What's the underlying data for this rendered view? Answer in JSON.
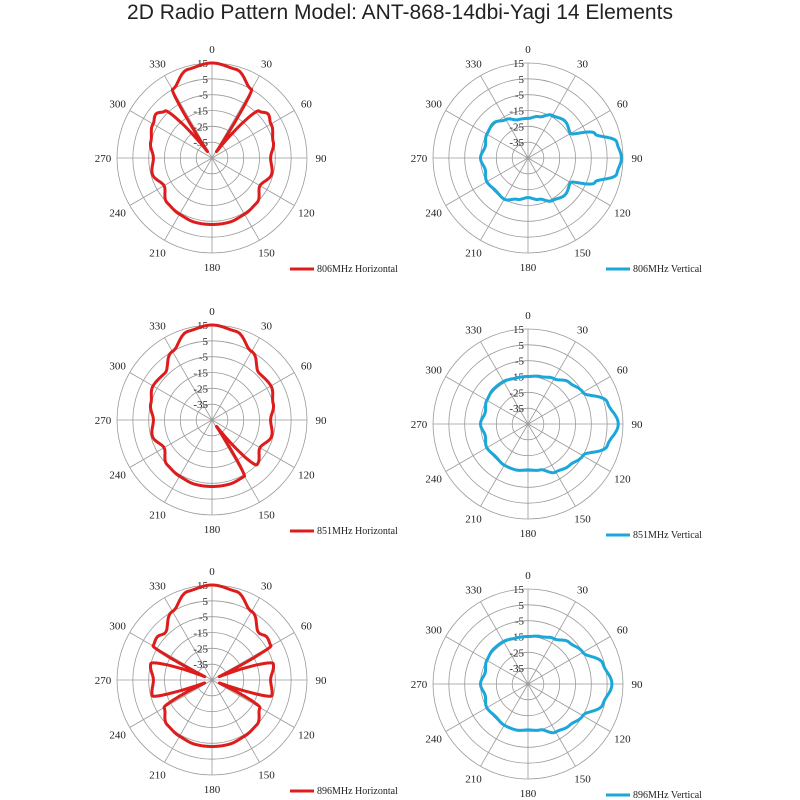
{
  "page": {
    "title": "2D Radio Pattern Model: ANT-868-14dbi-Yagi  14 Elements"
  },
  "chart_data": [
    {
      "type": "line",
      "subtype": "polar",
      "legend": "806MHz Horizontal",
      "legend_placement": "bottom-right",
      "color": "#dd1c1c",
      "angle_labels": [
        "0",
        "30",
        "60",
        "90",
        "120",
        "150",
        "180",
        "210",
        "240",
        "270",
        "300",
        "330"
      ],
      "radial_labels": [
        "15",
        "5",
        "-5",
        "-15",
        "-25",
        "-35"
      ],
      "rlim": [
        -45,
        15
      ],
      "grid": true,
      "angles_deg": [
        0,
        15,
        30,
        35,
        45,
        52,
        60,
        75,
        90,
        105,
        120,
        135,
        150,
        165,
        180,
        195,
        210,
        225,
        240,
        255,
        270,
        285,
        300,
        308,
        315,
        325,
        330,
        345
      ],
      "values_db": [
        15,
        13,
        5,
        -40,
        -3,
        0,
        -2,
        -5,
        -8,
        -6,
        -10,
        -5,
        -4,
        -3,
        -3,
        -3,
        -4,
        -5,
        -10,
        -6,
        -8,
        -5,
        -2,
        0,
        -3,
        -40,
        5,
        13
      ]
    },
    {
      "type": "line",
      "subtype": "polar",
      "legend": "806MHz Vertical",
      "legend_placement": "bottom-right",
      "color": "#1ba7d9",
      "angle_labels": [
        "0",
        "30",
        "60",
        "90",
        "120",
        "150",
        "180",
        "210",
        "240",
        "270",
        "300",
        "330"
      ],
      "radial_labels": [
        "15",
        "5",
        "-5",
        "-15",
        "-25",
        "-35"
      ],
      "rlim": [
        -45,
        15
      ],
      "grid": true,
      "angles_deg": [
        0,
        15,
        30,
        45,
        60,
        70,
        80,
        90,
        100,
        110,
        120,
        135,
        150,
        165,
        180,
        195,
        210,
        225,
        240,
        255,
        270,
        285,
        300,
        315,
        330,
        345
      ],
      "values_db": [
        -20,
        -18,
        -14,
        -12,
        -14,
        0,
        12,
        14,
        12,
        0,
        -14,
        -12,
        -14,
        -18,
        -20,
        -18,
        -15,
        -16,
        -15,
        -17,
        -15,
        -17,
        -15,
        -14,
        -17,
        -20
      ]
    },
    {
      "type": "line",
      "subtype": "polar",
      "legend": "851MHz Horizontal",
      "legend_placement": "bottom-right",
      "color": "#dd1c1c",
      "angle_labels": [
        "0",
        "30",
        "60",
        "90",
        "120",
        "150",
        "180",
        "210",
        "240",
        "270",
        "300",
        "330"
      ],
      "radial_labels": [
        "15",
        "5",
        "-5",
        "-15",
        "-25",
        "-35"
      ],
      "rlim": [
        -45,
        15
      ],
      "grid": true,
      "angles_deg": [
        0,
        15,
        30,
        45,
        60,
        75,
        90,
        105,
        120,
        135,
        145,
        150,
        165,
        180,
        195,
        210,
        225,
        240,
        255,
        270,
        285,
        300,
        315,
        330,
        345
      ],
      "values_db": [
        15,
        13,
        5,
        -3,
        -2,
        -5,
        -8,
        -6,
        -10,
        -5,
        -40,
        -4,
        -3,
        -3,
        -3,
        -4,
        -5,
        -10,
        -6,
        -8,
        -5,
        -2,
        -3,
        5,
        13
      ]
    },
    {
      "type": "line",
      "subtype": "polar",
      "legend": "851MHz Vertical",
      "legend_placement": "bottom-right",
      "color": "#1ba7d9",
      "angle_labels": [
        "0",
        "30",
        "60",
        "90",
        "120",
        "150",
        "180",
        "210",
        "240",
        "270",
        "300",
        "330"
      ],
      "radial_labels": [
        "15",
        "5",
        "-5",
        "-15",
        "-25",
        "-35"
      ],
      "rlim": [
        -45,
        15
      ],
      "grid": true,
      "angles_deg": [
        0,
        15,
        30,
        45,
        60,
        75,
        90,
        105,
        120,
        135,
        150,
        165,
        180,
        195,
        210,
        225,
        240,
        255,
        270,
        285,
        300,
        315,
        330,
        345
      ],
      "values_db": [
        -15,
        -14,
        -12,
        -8,
        -5,
        7,
        12,
        7,
        -5,
        -8,
        -10,
        -15,
        -16,
        -15,
        -15,
        -16,
        -15,
        -17,
        -15,
        -17,
        -15,
        -14,
        -14,
        -15
      ]
    },
    {
      "type": "line",
      "subtype": "polar",
      "legend": "896MHz Horizontal",
      "legend_placement": "bottom-right",
      "color": "#dd1c1c",
      "angle_labels": [
        "0",
        "30",
        "60",
        "90",
        "120",
        "150",
        "180",
        "210",
        "240",
        "270",
        "300",
        "330"
      ],
      "radial_labels": [
        "15",
        "5",
        "-5",
        "-15",
        "-25",
        "-35"
      ],
      "rlim": [
        -45,
        15
      ],
      "grid": true,
      "angles_deg": [
        0,
        15,
        30,
        45,
        52,
        60,
        65,
        75,
        90,
        105,
        112,
        120,
        135,
        150,
        165,
        180,
        195,
        210,
        225,
        240,
        248,
        255,
        270,
        285,
        295,
        300,
        308,
        315,
        330,
        345
      ],
      "values_db": [
        15,
        13,
        5,
        -3,
        -1,
        -2,
        -40,
        -5,
        -8,
        -6,
        -40,
        -10,
        -5,
        -4,
        -3,
        -3,
        -3,
        -4,
        -5,
        -10,
        -40,
        -6,
        -8,
        -5,
        -40,
        -2,
        -1,
        -3,
        5,
        13
      ]
    },
    {
      "type": "line",
      "subtype": "polar",
      "legend": "896MHz Vertical",
      "legend_placement": "bottom-right",
      "color": "#1ba7d9",
      "angle_labels": [
        "0",
        "30",
        "60",
        "90",
        "120",
        "150",
        "180",
        "210",
        "240",
        "270",
        "300",
        "330"
      ],
      "radial_labels": [
        "15",
        "5",
        "-5",
        "-15",
        "-25",
        "-35"
      ],
      "rlim": [
        -45,
        15
      ],
      "grid": true,
      "angles_deg": [
        0,
        15,
        30,
        45,
        60,
        75,
        90,
        105,
        120,
        135,
        150,
        165,
        180,
        195,
        210,
        225,
        240,
        255,
        270,
        285,
        300,
        315,
        330,
        345
      ],
      "values_db": [
        -15,
        -14,
        -12,
        -8,
        -5,
        4,
        8,
        4,
        -5,
        -8,
        -10,
        -15,
        -16,
        -15,
        -15,
        -16,
        -15,
        -17,
        -15,
        -17,
        -15,
        -14,
        -14,
        -15
      ]
    }
  ]
}
